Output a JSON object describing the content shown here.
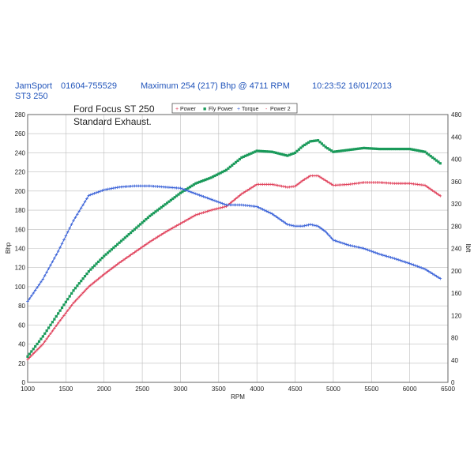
{
  "header": {
    "company": "JamSport",
    "phone": "01604-755529",
    "maximum": "Maximum 254 (217) Bhp @ 4711 RPM",
    "timestamp": "10:23:52 16/01/2013",
    "subtitle": "ST3 250"
  },
  "chart_data": {
    "type": "line",
    "title": "Ford Focus ST 250",
    "subtitle": "Standard Exhaust.",
    "xlabel": "RPM",
    "ylabel_left": "Bhp",
    "ylabel_right": "lbft",
    "xlim": [
      1000,
      6500
    ],
    "ylim_left": [
      0,
      280
    ],
    "ylim_right": [
      0,
      480
    ],
    "x_ticks": [
      1000,
      1500,
      2000,
      2500,
      3000,
      3500,
      4000,
      4500,
      5000,
      5500,
      6000,
      6500
    ],
    "y_ticks_left": [
      0,
      20,
      40,
      60,
      80,
      100,
      120,
      140,
      160,
      180,
      200,
      220,
      240,
      260,
      280
    ],
    "y_ticks_right": [
      0,
      40,
      80,
      120,
      160,
      200,
      240,
      280,
      320,
      360,
      400,
      440,
      480
    ],
    "legend": [
      "Power",
      "Fly Power",
      "Torque",
      "Power 2"
    ],
    "colors": {
      "power": "#e0405a",
      "fly_power": "#1a9a5a",
      "torque": "#3a62d8",
      "grid": "#bdbdbd"
    },
    "series": [
      {
        "name": "Power",
        "axis": "left",
        "color": "#e0405a",
        "x": [
          1000,
          1200,
          1400,
          1600,
          1800,
          2000,
          2200,
          2400,
          2600,
          2800,
          3000,
          3200,
          3400,
          3600,
          3800,
          4000,
          4200,
          4400,
          4500,
          4600,
          4700,
          4800,
          4900,
          5000,
          5200,
          5400,
          5600,
          5800,
          6000,
          6200,
          6400
        ],
        "y": [
          24,
          40,
          62,
          83,
          100,
          113,
          125,
          136,
          147,
          157,
          166,
          175,
          180,
          184,
          197,
          207,
          207,
          204,
          205,
          211,
          216,
          216,
          211,
          206,
          207,
          209,
          209,
          208,
          208,
          206,
          195
        ]
      },
      {
        "name": "Fly Power",
        "axis": "left",
        "color": "#1a9a5a",
        "x": [
          1000,
          1200,
          1400,
          1600,
          1800,
          2000,
          2200,
          2400,
          2600,
          2800,
          3000,
          3200,
          3400,
          3600,
          3800,
          4000,
          4200,
          4400,
          4500,
          4600,
          4700,
          4800,
          4900,
          5000,
          5200,
          5400,
          5600,
          5800,
          6000,
          6200,
          6400
        ],
        "y": [
          27,
          48,
          72,
          96,
          116,
          132,
          146,
          160,
          174,
          186,
          198,
          208,
          214,
          222,
          235,
          242,
          241,
          237,
          240,
          247,
          252,
          253,
          246,
          241,
          243,
          245,
          244,
          244,
          244,
          241,
          229
        ]
      },
      {
        "name": "Torque",
        "axis": "right",
        "color": "#3a62d8",
        "x": [
          1000,
          1200,
          1400,
          1600,
          1800,
          2000,
          2200,
          2400,
          2600,
          2800,
          3000,
          3200,
          3400,
          3600,
          3800,
          4000,
          4200,
          4400,
          4500,
          4600,
          4700,
          4800,
          4900,
          5000,
          5200,
          5400,
          5600,
          5800,
          6000,
          6200,
          6400
        ],
        "y": [
          145,
          185,
          235,
          290,
          335,
          345,
          350,
          352,
          352,
          350,
          348,
          338,
          328,
          318,
          318,
          315,
          302,
          283,
          280,
          280,
          283,
          280,
          270,
          255,
          246,
          240,
          230,
          222,
          213,
          203,
          186
        ]
      },
      {
        "name": "Power 2",
        "axis": "left",
        "color": "#e0405a",
        "x": [],
        "y": []
      }
    ]
  }
}
